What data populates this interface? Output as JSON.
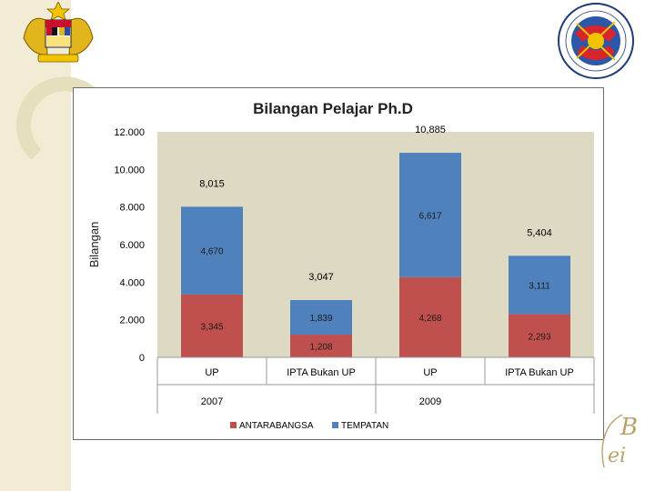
{
  "colors": {
    "antarabangsa": "#c0504d",
    "tempatan": "#4f81bd",
    "plot_bg": "#ddd9c3",
    "strip": "#f1ecd3"
  },
  "icons": {
    "top_left": "malaysia-coat-of-arms-icon",
    "top_right": "ministry-higher-education-seal-icon",
    "bottom_right": "bei-logo-icon"
  },
  "bei_logo": {
    "letter_b": "B",
    "letters_ei": "ei"
  },
  "chart_data": {
    "type": "bar",
    "stacked": true,
    "title": "Bilangan Pelajar Ph.D",
    "ylabel": "Bilangan",
    "xlabel": "",
    "ylim": [
      0,
      12000
    ],
    "y_ticks": [
      "0",
      "2.000",
      "4.000",
      "6.000",
      "8.000",
      "10.000",
      "12.000"
    ],
    "y_tick_values": [
      0,
      2000,
      4000,
      6000,
      8000,
      10000,
      12000
    ],
    "grid": false,
    "legend_position": "bottom",
    "categories": [
      "UP",
      "IPTA Bukan UP",
      "UP",
      "IPTA Bukan UP"
    ],
    "groups": [
      {
        "label": "2007",
        "categories": [
          0,
          1
        ]
      },
      {
        "label": "2009",
        "categories": [
          2,
          3
        ]
      }
    ],
    "series": [
      {
        "name": "ANTARABANGSA",
        "values": [
          3345,
          1208,
          4268,
          2293
        ],
        "labels": [
          "3,345",
          "1,208",
          "4,268",
          "2,293"
        ]
      },
      {
        "name": "TEMPATAN",
        "values": [
          4670,
          1839,
          6617,
          3111
        ],
        "labels": [
          "4,670",
          "1,839",
          "6,617",
          "3,111"
        ]
      }
    ],
    "totals": [
      8015,
      3047,
      10885,
      5404
    ],
    "total_labels": [
      "8,015",
      "3,047",
      "10,885",
      "5,404"
    ]
  }
}
